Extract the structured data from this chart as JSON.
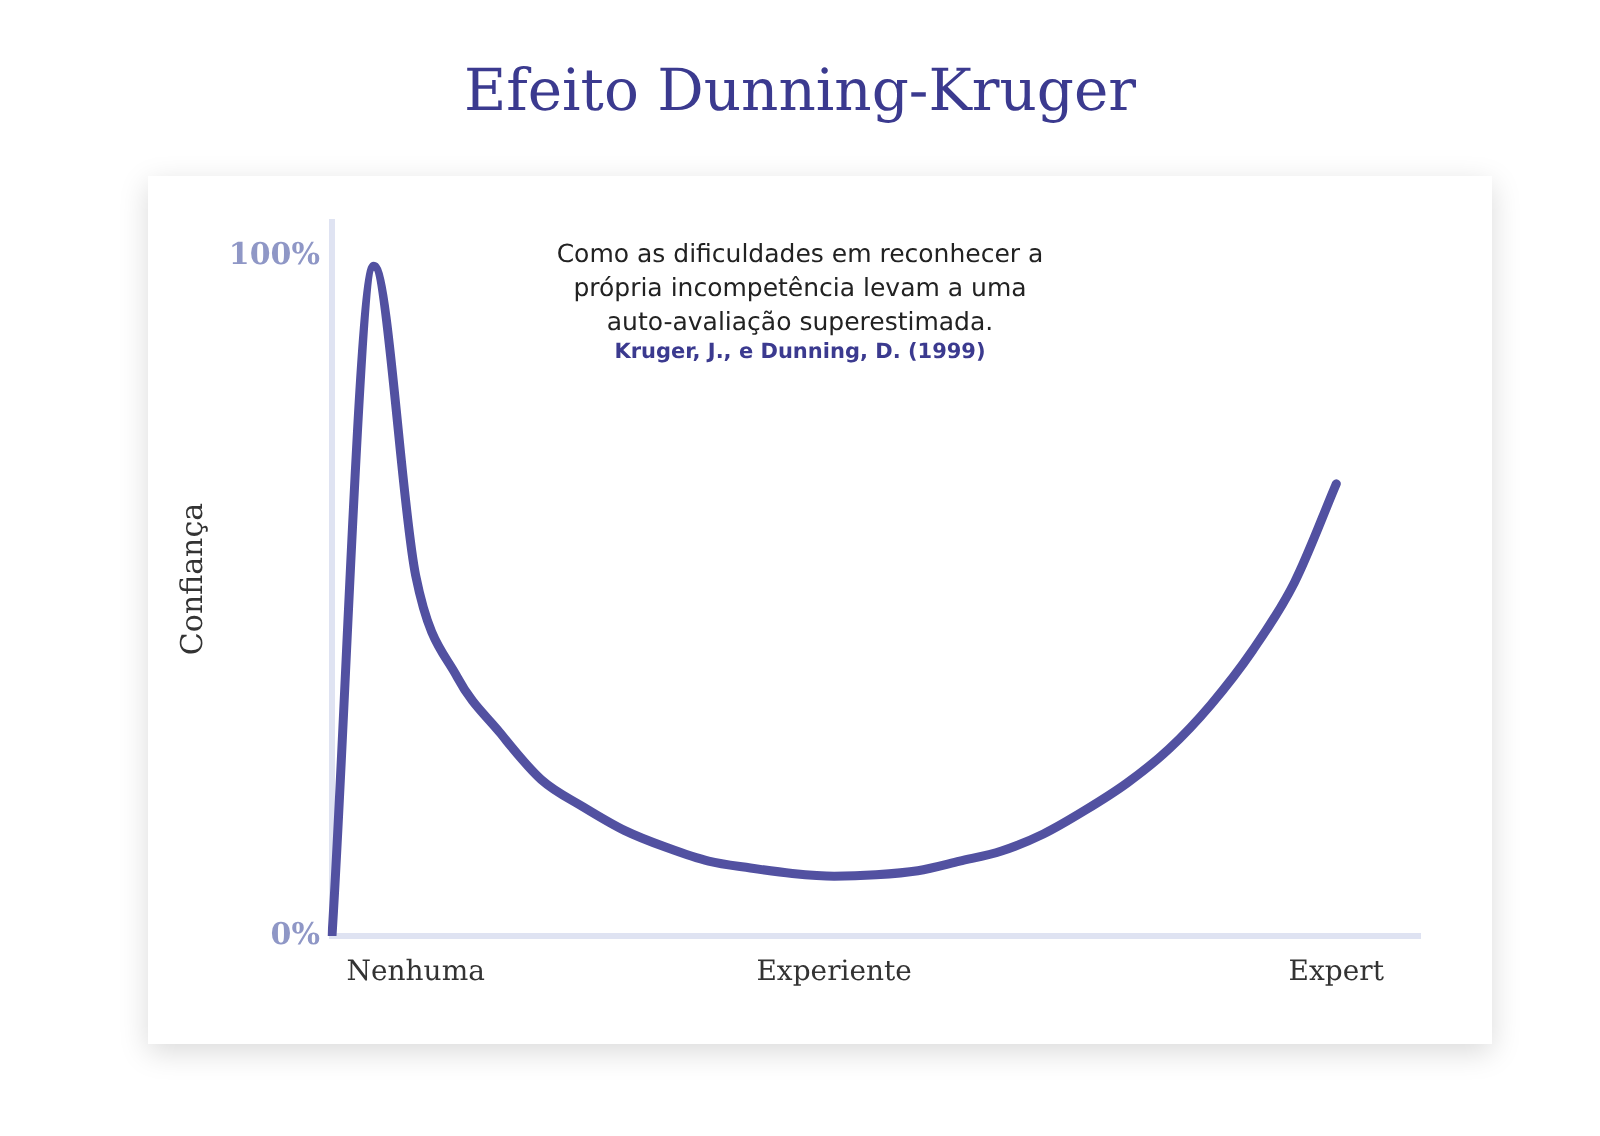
{
  "chart_data": {
    "type": "line",
    "title": "Efeito Dunning-Kruger",
    "ylabel": "Confiança",
    "annotations": [
      "Como as dificuldades em reconhecer a\nprópria incompetência levam a uma\nauto-avaliação superestimada.",
      "Kruger, J., e Dunning, D. (1999)"
    ],
    "categories": [
      null,
      null,
      "Nenhuma",
      null,
      null,
      null,
      null,
      null,
      null,
      null,
      null,
      null,
      "Experiente",
      null,
      null,
      null,
      null,
      null,
      null,
      null,
      null,
      null,
      null,
      null,
      "Expert",
      null,
      null
    ],
    "series": [
      {
        "color": "#5251a1",
        "values": [
          0,
          98.5,
          53,
          38,
          30,
          23,
          19,
          15.5,
          13,
          11,
          10,
          9.2,
          8.8,
          9,
          9.6,
          11,
          12.5,
          15,
          18.5,
          22.5,
          27.5,
          34,
          42,
          52,
          66.5,
          null,
          null
        ]
      }
    ],
    "ylim": [
      0,
      105
    ],
    "yticks": [
      {
        "value": 0,
        "label": "0%"
      },
      {
        "value": 100,
        "label": "100%"
      }
    ],
    "grid": false,
    "legend": false,
    "marker": "none"
  }
}
